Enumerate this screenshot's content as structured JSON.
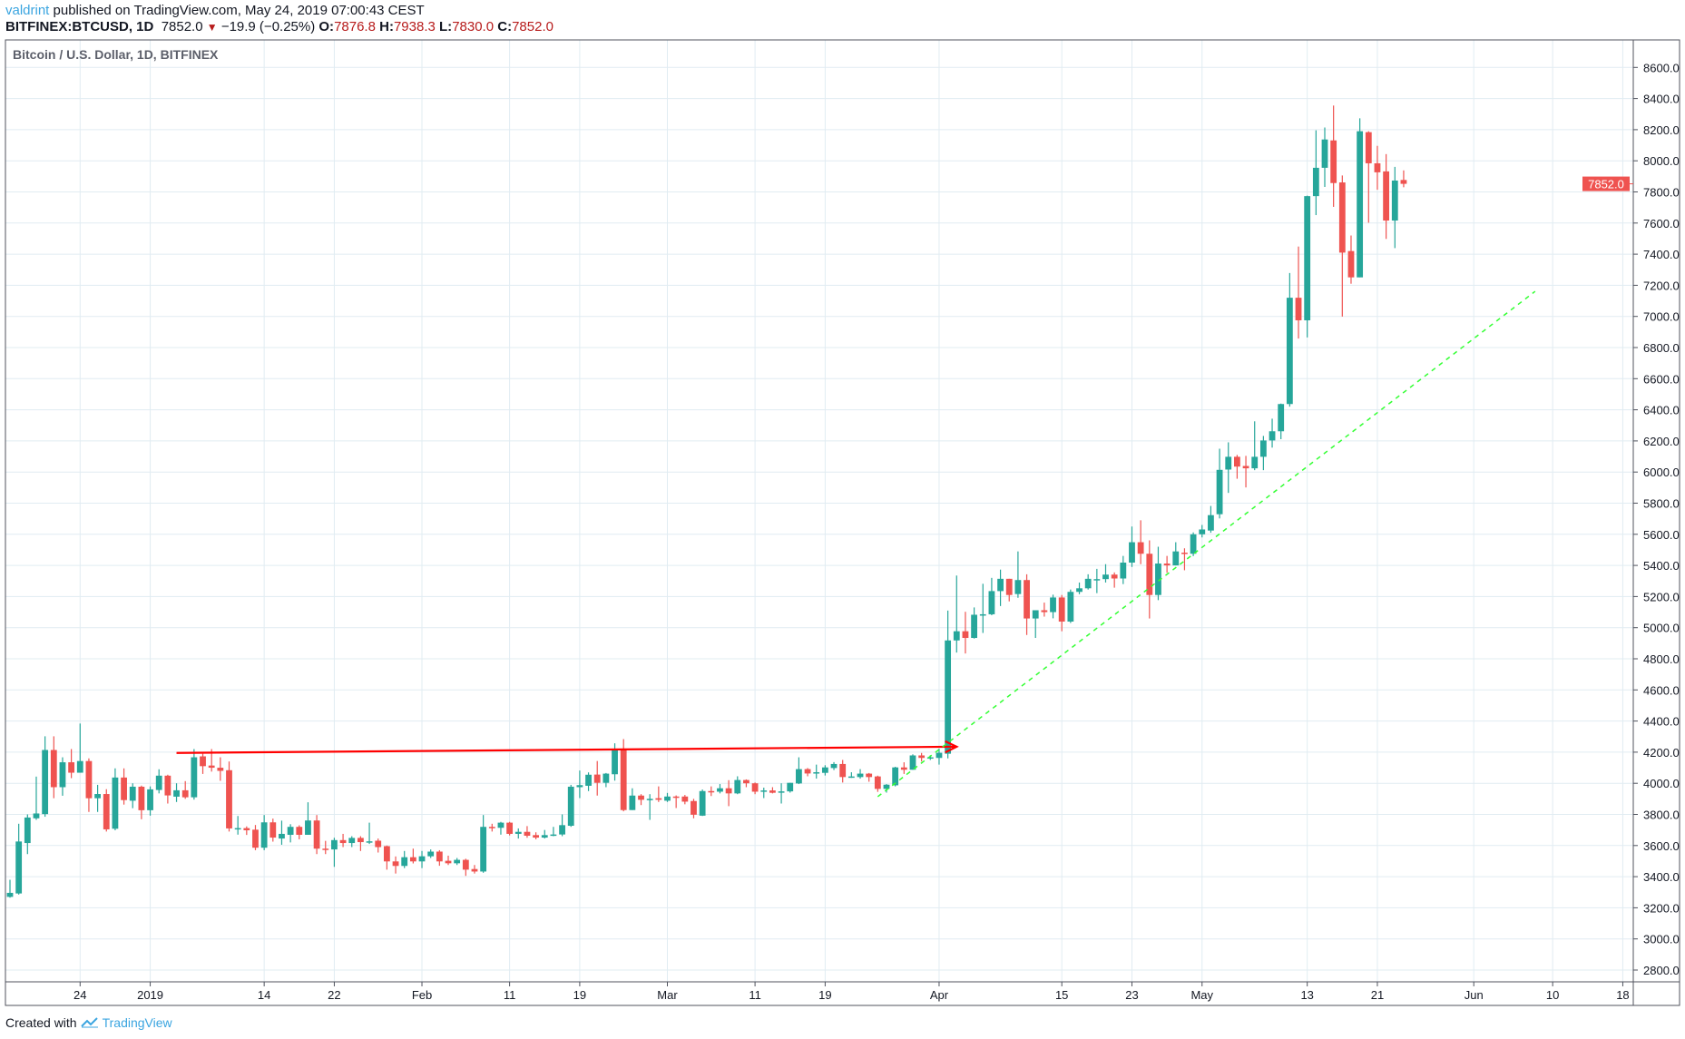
{
  "header": {
    "author": "valdrint",
    "published": "published on TradingView.com, May 24, 2019 07:00:43 CEST",
    "symbol": "BITFINEX:BTCUSD, 1D",
    "last": "7852.0",
    "change": "−19.9 (−0.25%)",
    "o_label": "O:",
    "o": "7876.8",
    "h_label": "H:",
    "h": "7938.3",
    "l_label": "L:",
    "l": "7830.0",
    "c_label": "C:",
    "c": "7852.0",
    "down_icon": "triangle-down-icon"
  },
  "legend": "Bitcoin / U.S. Dollar, 1D, BITFINEX",
  "footer": {
    "created": "Created with",
    "brand": "TradingView",
    "logo_icon": "tradingview-logo-icon"
  },
  "colors": {
    "up": "#26a69a",
    "down": "#ef5350",
    "grid": "#e1ecf2",
    "arrow": "#ff0000",
    "trend": "#33ff33",
    "author": "#3ba5e0"
  },
  "chart_data": {
    "type": "candlestick",
    "title": "Bitcoin / U.S. Dollar, 1D, BITFINEX",
    "first_date": "2018-12-16",
    "interval": "1D",
    "ylim": [
      2700,
      8800
    ],
    "grid": true,
    "y_ticks": [
      "2800.0",
      "3000.0",
      "3200.0",
      "3400.0",
      "3600.0",
      "3800.0",
      "4000.0",
      "4200.0",
      "4400.0",
      "4600.0",
      "4800.0",
      "5000.0",
      "5200.0",
      "5400.0",
      "5600.0",
      "5800.0",
      "6000.0",
      "6200.0",
      "6400.0",
      "6600.0",
      "6800.0",
      "7000.0",
      "7200.0",
      "7400.0",
      "7600.0",
      "7800.0",
      "8000.0",
      "8200.0",
      "8400.0",
      "8600.0"
    ],
    "x_ticks": [
      {
        "label": "24",
        "date": "2018-12-24"
      },
      {
        "label": "2019",
        "date": "2019-01-01"
      },
      {
        "label": "14",
        "date": "2019-01-14"
      },
      {
        "label": "22",
        "date": "2019-01-22"
      },
      {
        "label": "Feb",
        "date": "2019-02-01"
      },
      {
        "label": "11",
        "date": "2019-02-11"
      },
      {
        "label": "19",
        "date": "2019-02-19"
      },
      {
        "label": "Mar",
        "date": "2019-03-01"
      },
      {
        "label": "11",
        "date": "2019-03-11"
      },
      {
        "label": "19",
        "date": "2019-03-19"
      },
      {
        "label": "Apr",
        "date": "2019-04-01"
      },
      {
        "label": "15",
        "date": "2019-04-15"
      },
      {
        "label": "23",
        "date": "2019-04-23"
      },
      {
        "label": "May",
        "date": "2019-05-01"
      },
      {
        "label": "13",
        "date": "2019-05-13"
      },
      {
        "label": "21",
        "date": "2019-05-21"
      },
      {
        "label": "Jun",
        "date": "2019-06-01"
      },
      {
        "label": "10",
        "date": "2019-06-10"
      },
      {
        "label": "18",
        "date": "2019-06-18"
      }
    ],
    "last_price_label": "7852.0",
    "ohlc": [
      [
        3270,
        3380,
        3265,
        3296
      ],
      [
        3292,
        3740,
        3285,
        3626
      ],
      [
        3616,
        3800,
        3545,
        3780
      ],
      [
        3775,
        4043,
        3765,
        3806
      ],
      [
        3802,
        4302,
        3785,
        4214
      ],
      [
        4214,
        4302,
        3904,
        3975
      ],
      [
        3975,
        4167,
        3920,
        4135
      ],
      [
        4135,
        4220,
        4033,
        4068
      ],
      [
        4068,
        4384,
        4068,
        4143
      ],
      [
        4143,
        4160,
        3816,
        3904
      ],
      [
        3904,
        3990,
        3816,
        3931
      ],
      [
        3931,
        3962,
        3690,
        3704
      ],
      [
        3708,
        4096,
        3698,
        4037
      ],
      [
        4037,
        4096,
        3863,
        3892
      ],
      [
        3888,
        4000,
        3840,
        3978
      ],
      [
        3978,
        3985,
        3769,
        3827
      ],
      [
        3827,
        3980,
        3792,
        3961
      ],
      [
        3957,
        4090,
        3935,
        4049
      ],
      [
        4049,
        4055,
        3870,
        3922
      ],
      [
        3914,
        4000,
        3880,
        3955
      ],
      [
        3955,
        4014,
        3900,
        3910
      ],
      [
        3910,
        4220,
        3895,
        4167
      ],
      [
        4173,
        4190,
        4060,
        4110
      ],
      [
        4114,
        4220,
        4075,
        4100
      ],
      [
        4100,
        4167,
        4016,
        4080
      ],
      [
        4084,
        4140,
        3690,
        3710
      ],
      [
        3712,
        3790,
        3670,
        3712
      ],
      [
        3712,
        3723,
        3668,
        3698
      ],
      [
        3702,
        3732,
        3570,
        3586
      ],
      [
        3586,
        3796,
        3570,
        3749
      ],
      [
        3749,
        3773,
        3625,
        3651
      ],
      [
        3645,
        3760,
        3605,
        3675
      ],
      [
        3669,
        3737,
        3620,
        3720
      ],
      [
        3720,
        3730,
        3640,
        3669
      ],
      [
        3669,
        3878,
        3669,
        3761
      ],
      [
        3761,
        3796,
        3545,
        3580
      ],
      [
        3580,
        3630,
        3545,
        3575
      ],
      [
        3575,
        3650,
        3463,
        3635
      ],
      [
        3635,
        3675,
        3590,
        3616
      ],
      [
        3616,
        3660,
        3590,
        3649
      ],
      [
        3649,
        3660,
        3565,
        3622
      ],
      [
        3622,
        3747,
        3610,
        3627
      ],
      [
        3631,
        3645,
        3555,
        3590
      ],
      [
        3596,
        3600,
        3445,
        3498
      ],
      [
        3498,
        3530,
        3420,
        3469
      ],
      [
        3469,
        3565,
        3455,
        3525
      ],
      [
        3525,
        3580,
        3485,
        3498
      ],
      [
        3498,
        3565,
        3455,
        3531
      ],
      [
        3531,
        3575,
        3520,
        3561
      ],
      [
        3561,
        3570,
        3470,
        3498
      ],
      [
        3502,
        3535,
        3475,
        3486
      ],
      [
        3486,
        3520,
        3475,
        3508
      ],
      [
        3508,
        3515,
        3405,
        3445
      ],
      [
        3449,
        3475,
        3420,
        3433
      ],
      [
        3433,
        3796,
        3425,
        3720
      ],
      [
        3720,
        3740,
        3690,
        3714
      ],
      [
        3714,
        3752,
        3670,
        3747
      ],
      [
        3747,
        3752,
        3665,
        3675
      ],
      [
        3675,
        3710,
        3645,
        3688
      ],
      [
        3688,
        3725,
        3650,
        3663
      ],
      [
        3667,
        3685,
        3640,
        3651
      ],
      [
        3651,
        3700,
        3645,
        3667
      ],
      [
        3667,
        3720,
        3660,
        3671
      ],
      [
        3671,
        3800,
        3660,
        3731
      ],
      [
        3727,
        3990,
        3720,
        3978
      ],
      [
        3975,
        4082,
        3905,
        3988
      ],
      [
        3984,
        4070,
        3950,
        4055
      ],
      [
        4056,
        4143,
        3921,
        4003
      ],
      [
        4003,
        4066,
        3975,
        4062
      ],
      [
        4058,
        4257,
        4017,
        4218
      ],
      [
        4218,
        4284,
        3820,
        3828
      ],
      [
        3828,
        3968,
        3828,
        3921
      ],
      [
        3921,
        3930,
        3860,
        3894
      ],
      [
        3894,
        3930,
        3765,
        3900
      ],
      [
        3904,
        3980,
        3880,
        3894
      ],
      [
        3888,
        3938,
        3880,
        3915
      ],
      [
        3915,
        3922,
        3841,
        3911
      ],
      [
        3915,
        3925,
        3865,
        3882
      ],
      [
        3886,
        3900,
        3775,
        3798
      ],
      [
        3792,
        3960,
        3790,
        3950
      ],
      [
        3950,
        3980,
        3918,
        3946
      ],
      [
        3946,
        3995,
        3935,
        3968
      ],
      [
        3968,
        4020,
        3853,
        3935
      ],
      [
        3935,
        4045,
        3930,
        4021
      ],
      [
        4021,
        4025,
        3975,
        4000
      ],
      [
        4000,
        4005,
        3930,
        3946
      ],
      [
        3946,
        3972,
        3905,
        3954
      ],
      [
        3954,
        3975,
        3935,
        3939
      ],
      [
        3943,
        4000,
        3870,
        3948
      ],
      [
        3948,
        4003,
        3940,
        4003
      ],
      [
        3999,
        4167,
        3995,
        4091
      ],
      [
        4091,
        4098,
        4045,
        4063
      ],
      [
        4063,
        4120,
        4030,
        4071
      ],
      [
        4067,
        4116,
        4050,
        4102
      ],
      [
        4098,
        4136,
        4085,
        4124
      ],
      [
        4124,
        4150,
        4005,
        4040
      ],
      [
        4040,
        4071,
        4035,
        4044
      ],
      [
        4040,
        4091,
        4030,
        4062
      ],
      [
        4062,
        4066,
        4010,
        4040
      ],
      [
        4044,
        4049,
        3945,
        3964
      ],
      [
        3964,
        3995,
        3940,
        3991
      ],
      [
        3987,
        4106,
        3980,
        4102
      ],
      [
        4102,
        4135,
        4060,
        4087
      ],
      [
        4087,
        4186,
        4087,
        4179
      ],
      [
        4179,
        4195,
        4140,
        4163
      ],
      [
        4163,
        4180,
        4150,
        4167
      ],
      [
        4163,
        4222,
        4120,
        4196
      ],
      [
        4190,
        5110,
        4160,
        4918
      ],
      [
        4918,
        5335,
        4840,
        4977
      ],
      [
        4977,
        5102,
        4834,
        4934
      ],
      [
        4934,
        5130,
        4930,
        5083
      ],
      [
        5083,
        5282,
        4966,
        5086
      ],
      [
        5086,
        5320,
        5080,
        5235
      ],
      [
        5235,
        5373,
        5139,
        5314
      ],
      [
        5314,
        5314,
        5169,
        5210
      ],
      [
        5216,
        5490,
        5192,
        5306
      ],
      [
        5306,
        5343,
        4953,
        5059
      ],
      [
        5059,
        5112,
        4934,
        5112
      ],
      [
        5112,
        5161,
        5071,
        5100
      ],
      [
        5100,
        5212,
        5060,
        5194
      ],
      [
        5194,
        5210,
        4977,
        5039
      ],
      [
        5039,
        5245,
        5030,
        5230
      ],
      [
        5230,
        5290,
        5215,
        5253
      ],
      [
        5253,
        5343,
        5245,
        5314
      ],
      [
        5312,
        5378,
        5222,
        5312
      ],
      [
        5312,
        5408,
        5290,
        5341
      ],
      [
        5341,
        5355,
        5257,
        5316
      ],
      [
        5316,
        5461,
        5280,
        5418
      ],
      [
        5418,
        5650,
        5390,
        5549
      ],
      [
        5549,
        5690,
        5408,
        5475
      ],
      [
        5475,
        5561,
        5059,
        5210
      ],
      [
        5210,
        5520,
        5177,
        5412
      ],
      [
        5412,
        5461,
        5353,
        5400
      ],
      [
        5400,
        5549,
        5400,
        5490
      ],
      [
        5482,
        5510,
        5369,
        5475
      ],
      [
        5475,
        5612,
        5460,
        5600
      ],
      [
        5600,
        5660,
        5580,
        5631
      ],
      [
        5624,
        5782,
        5610,
        5723
      ],
      [
        5729,
        6150,
        5702,
        6014
      ],
      [
        6016,
        6191,
        5866,
        6098
      ],
      [
        6098,
        6110,
        5957,
        6035
      ],
      [
        6039,
        6104,
        5901,
        6024
      ],
      [
        6024,
        6326,
        6012,
        6098
      ],
      [
        6098,
        6232,
        6012,
        6203
      ],
      [
        6203,
        6343,
        6157,
        6262
      ],
      [
        6262,
        6440,
        6211,
        6437
      ],
      [
        6437,
        7279,
        6420,
        7120
      ],
      [
        7120,
        7449,
        6858,
        6975
      ],
      [
        6975,
        7776,
        6865,
        7773
      ],
      [
        7773,
        8196,
        7651,
        7955
      ],
      [
        7955,
        8214,
        7832,
        8137
      ],
      [
        8131,
        8355,
        7704,
        7857
      ],
      [
        7861,
        7906,
        6999,
        7410
      ],
      [
        7420,
        7520,
        7210,
        7251
      ],
      [
        7251,
        8273,
        7251,
        8190
      ],
      [
        8184,
        8190,
        7602,
        7984
      ],
      [
        7984,
        8096,
        7814,
        7926
      ],
      [
        7932,
        8043,
        7498,
        7616
      ],
      [
        7616,
        7961,
        7439,
        7873
      ],
      [
        7876.8,
        7938.3,
        7830,
        7852
      ]
    ],
    "drawings": [
      {
        "type": "arrow",
        "color": "#ff0000",
        "from": {
          "date": "2019-01-04",
          "price": 4195
        },
        "to": {
          "date": "2019-04-03",
          "price": 4235
        }
      },
      {
        "type": "dashed-trendline",
        "color": "#33ff33",
        "from": {
          "date": "2019-03-25",
          "price": 3914
        },
        "to": {
          "date": "2019-06-08",
          "price": 7161
        }
      }
    ]
  }
}
